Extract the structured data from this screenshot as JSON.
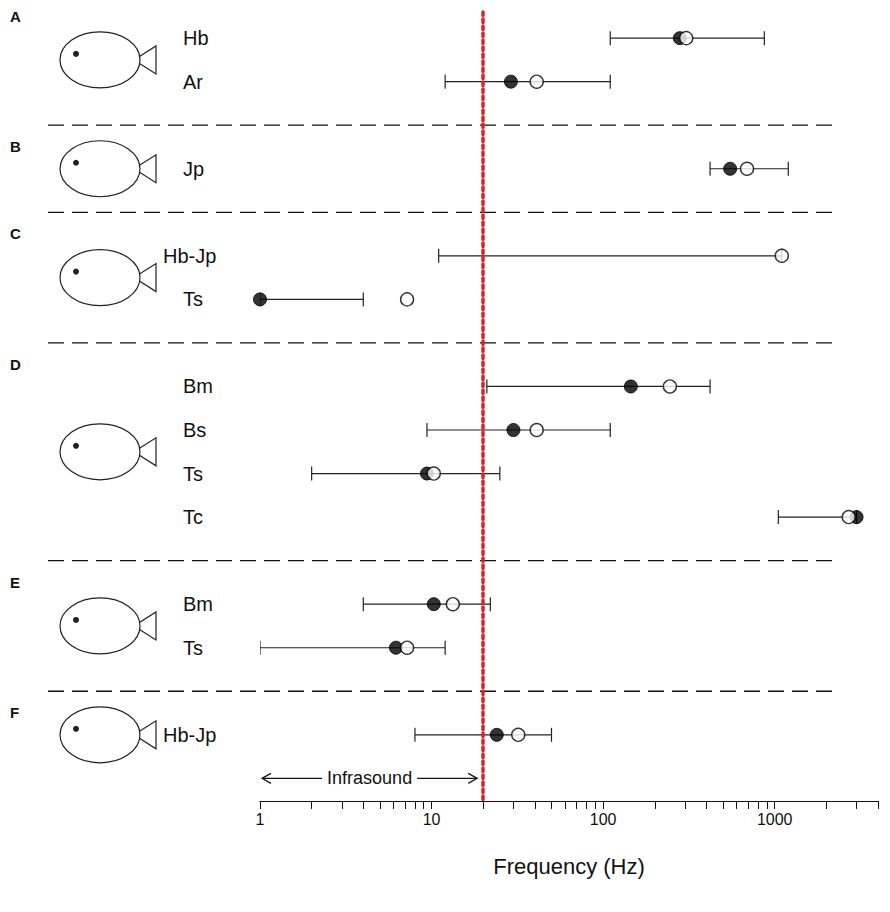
{
  "chart_data": {
    "type": "scatter",
    "log": "x",
    "grid": false,
    "xlabel": "Frequency (Hz)",
    "xlim": [
      1,
      4000
    ],
    "xticks": [
      1,
      10,
      100,
      1000
    ],
    "threshold": 20,
    "annotation": {
      "text": "Infrasound",
      "from": 1,
      "to": 20
    },
    "panels": [
      {
        "label": "A",
        "rows": [
          {
            "name": "Hb",
            "filled": 280,
            "open": 305,
            "error_low": 110,
            "error_high": 870
          },
          {
            "name": "Ar",
            "filled": 29,
            "open": 41,
            "error_low": 12,
            "error_high": 110
          }
        ]
      },
      {
        "label": "B",
        "rows": [
          {
            "name": "Jp",
            "filled": 550,
            "open": 690,
            "error_low": 420,
            "error_high": 1200
          }
        ]
      },
      {
        "label": "C",
        "rows": [
          {
            "name": "Hb-Jp",
            "filled": null,
            "open": 1100,
            "error_low": 11,
            "error_high": 1100
          },
          {
            "name": "Ts",
            "filled": 1,
            "open": 7.2,
            "error_low": 1,
            "error_high": 4
          }
        ]
      },
      {
        "label": "D",
        "rows": [
          {
            "name": "Bm",
            "filled": 145,
            "open": 245,
            "error_low": 21,
            "error_high": 420
          },
          {
            "name": "Bs",
            "filled": 30,
            "open": 41,
            "error_low": 9.4,
            "error_high": 110
          },
          {
            "name": "Ts",
            "filled": 9.4,
            "open": 10.3,
            "error_low": 2,
            "error_high": 25
          },
          {
            "name": "Tc",
            "filled": 3000,
            "open": 2700,
            "error_low": 1050,
            "error_high": 3000
          }
        ]
      },
      {
        "label": "E",
        "rows": [
          {
            "name": "Bm",
            "filled": 10.3,
            "open": 13.3,
            "error_low": 4,
            "error_high": 22
          },
          {
            "name": "Ts",
            "filled": 6.2,
            "open": 7.2,
            "error_low": 1,
            "error_high": 12
          }
        ]
      },
      {
        "label": "F",
        "rows": [
          {
            "name": "Hb-Jp",
            "filled": 24,
            "open": 32,
            "error_low": 8,
            "error_high": 50
          }
        ]
      }
    ]
  }
}
